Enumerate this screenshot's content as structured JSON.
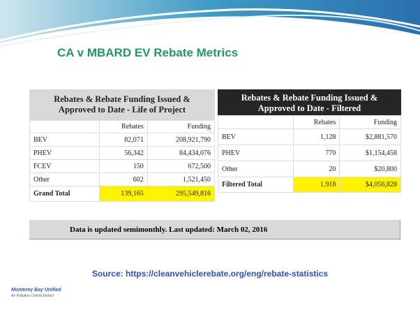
{
  "title": "CA v MBARD EV Rebate Metrics",
  "tables": [
    {
      "title": "Rebates & Rebate Funding Issued & Approved to Date - Life of Project",
      "columns": [
        "Rebates",
        "Funding"
      ],
      "rows": [
        [
          "BEV",
          "82,071",
          "208,921,790"
        ],
        [
          "PHEV",
          "56,342",
          "84,434,076"
        ],
        [
          "FCEV",
          "150",
          "672,500"
        ],
        [
          "Other",
          "602",
          "1,521,450"
        ],
        [
          "Grand Total",
          "139,165",
          "295,549,816"
        ]
      ]
    },
    {
      "title": "Rebates & Rebate Funding Issued & Approved to Date - Filtered",
      "columns": [
        "Rebates",
        "Funding"
      ],
      "rows": [
        [
          "BEV",
          "1,128",
          "$2,881,570"
        ],
        [
          "PHEV",
          "770",
          "$1,154,458"
        ],
        [
          "Other",
          "20",
          "$20,800"
        ],
        [
          "Filtered Total",
          "1,918",
          "$4,056,828"
        ]
      ]
    }
  ],
  "note": "Data is updated semimonthly. Last updated: March 02, 2016",
  "source": "Source: https://cleanvehiclerebate.org/eng/rebate-statistics",
  "logo": {
    "name": "Monterey Bay Unified",
    "subtitle": "Air Pollution Control District"
  }
}
